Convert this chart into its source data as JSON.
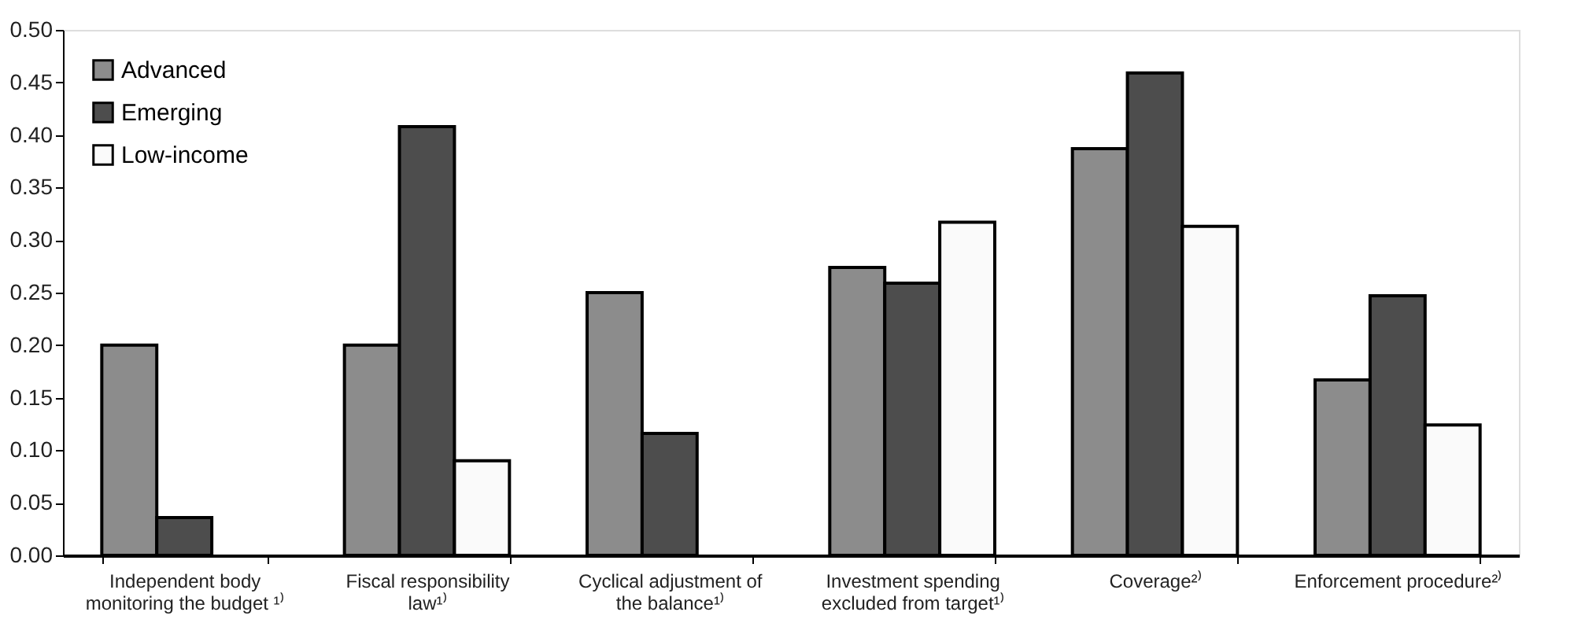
{
  "chart_data": {
    "type": "bar",
    "categories": [
      "Independent body monitoring the budget ¹⁾",
      "Fiscal responsibility law¹⁾",
      "Cyclical adjustment of the balance¹⁾",
      "Investment spending excluded from target¹⁾",
      "Coverage²⁾",
      "Enforcement procedure²⁾"
    ],
    "series": [
      {
        "name": "Advanced",
        "color": "#8c8c8c",
        "values": [
          0.2,
          0.2,
          0.25,
          0.274,
          0.387,
          0.167
        ]
      },
      {
        "name": "Emerging",
        "color": "#4d4d4d",
        "values": [
          0.036,
          0.408,
          0.116,
          0.259,
          0.459,
          0.247
        ]
      },
      {
        "name": "Low-income",
        "color": "#fafafa",
        "values": [
          null,
          0.09,
          null,
          0.317,
          0.313,
          0.124
        ]
      }
    ],
    "ylim": [
      0,
      0.5
    ],
    "yticks": [
      {
        "value": 0,
        "label": "0.00"
      },
      {
        "value": 0.05,
        "label": "0.05"
      },
      {
        "value": 0.1,
        "label": "0.10"
      },
      {
        "value": 0.15,
        "label": "0.15"
      },
      {
        "value": 0.2,
        "label": "0.20"
      },
      {
        "value": 0.25,
        "label": "0.25"
      },
      {
        "value": 0.3,
        "label": "0.30"
      },
      {
        "value": 0.35,
        "label": "0.35"
      },
      {
        "value": 0.4,
        "label": "0.40"
      },
      {
        "value": 0.45,
        "label": "0.45"
      },
      {
        "value": 0.5,
        "label": "0.50"
      }
    ],
    "grid": false,
    "legend": "top left"
  }
}
